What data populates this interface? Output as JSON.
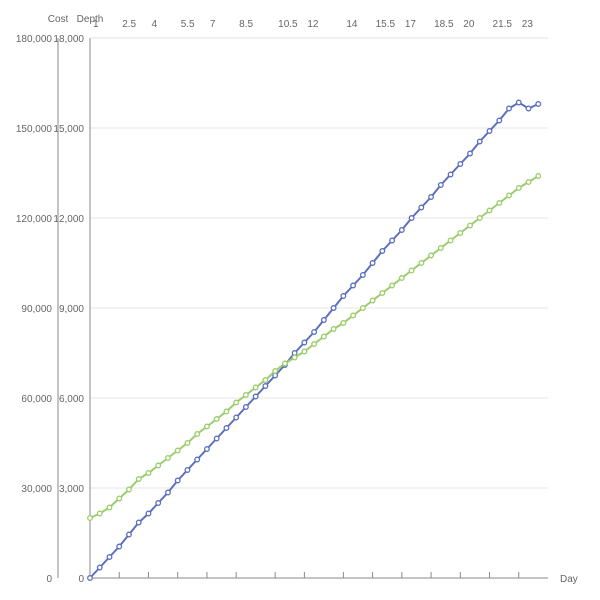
{
  "chart_data": {
    "type": "line",
    "x_axis": {
      "label": "Day",
      "ticks": [
        "1",
        "2.5",
        "4",
        "5.5",
        "7",
        "8.5",
        "10.5",
        "12",
        "14",
        "15.5",
        "17",
        "18.5",
        "20",
        "21.5",
        "23"
      ],
      "range": [
        1,
        24.5
      ]
    },
    "y_axes": [
      {
        "label": "Cost",
        "ticks": [
          "0",
          "30,000",
          "60,000",
          "90,000",
          "120,000",
          "150,000",
          "180,000"
        ],
        "range": [
          0,
          180000
        ]
      },
      {
        "label": "Depth",
        "ticks": [
          "0",
          "3,000",
          "6,000",
          "9,000",
          "12,000",
          "15,000",
          "18,000"
        ],
        "range": [
          0,
          18000
        ]
      }
    ],
    "grid": true,
    "series": [
      {
        "color": "#5b6fbf",
        "axis": "Depth",
        "x": [
          1,
          1.5,
          2,
          2.5,
          3,
          3.5,
          4,
          4.5,
          5,
          5.5,
          6,
          6.5,
          7,
          7.5,
          8,
          8.5,
          9,
          9.5,
          10,
          10.5,
          11,
          11.5,
          12,
          12.5,
          13,
          13.5,
          14,
          14.5,
          15,
          15.5,
          16,
          16.5,
          17,
          17.5,
          18,
          18.5,
          19,
          19.5,
          20,
          20.5,
          21,
          21.5,
          22,
          22.5,
          23,
          23.5,
          24
        ],
        "values": [
          0,
          350,
          700,
          1050,
          1450,
          1850,
          2150,
          2500,
          2850,
          3250,
          3600,
          3950,
          4300,
          4650,
          5000,
          5350,
          5700,
          6050,
          6400,
          6750,
          7100,
          7500,
          7850,
          8200,
          8600,
          9000,
          9400,
          9750,
          10100,
          10500,
          10900,
          11250,
          11600,
          12000,
          12350,
          12700,
          13100,
          13450,
          13800,
          14150,
          14550,
          14900,
          15250,
          15650,
          15850,
          15650,
          15800
        ]
      },
      {
        "color": "#9acd6b",
        "axis": "Depth",
        "x": [
          1,
          1.5,
          2,
          2.5,
          3,
          3.5,
          4,
          4.5,
          5,
          5.5,
          6,
          6.5,
          7,
          7.5,
          8,
          8.5,
          9,
          9.5,
          10,
          10.5,
          11,
          11.5,
          12,
          12.5,
          13,
          13.5,
          14,
          14.5,
          15,
          15.5,
          16,
          16.5,
          17,
          17.5,
          18,
          18.5,
          19,
          19.5,
          20,
          20.5,
          21,
          21.5,
          22,
          22.5,
          23,
          23.5,
          24
        ],
        "values": [
          2000,
          2150,
          2350,
          2650,
          2950,
          3300,
          3500,
          3750,
          4000,
          4250,
          4500,
          4800,
          5050,
          5300,
          5550,
          5850,
          6100,
          6350,
          6600,
          6900,
          7150,
          7350,
          7550,
          7800,
          8050,
          8300,
          8500,
          8750,
          9000,
          9250,
          9500,
          9750,
          10000,
          10250,
          10500,
          10750,
          11000,
          11250,
          11500,
          11750,
          12000,
          12250,
          12500,
          12750,
          13000,
          13200,
          13400
        ]
      }
    ]
  }
}
